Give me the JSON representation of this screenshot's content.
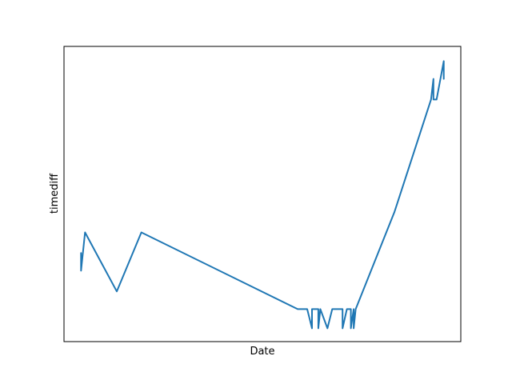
{
  "chart_data": {
    "type": "line",
    "title": "",
    "xlabel": "Date",
    "ylabel": "timediff",
    "x_ticks_visible": false,
    "y_ticks_visible": false,
    "grid": false,
    "xlim": [
      0,
      100
    ],
    "ylim": [
      0,
      100
    ],
    "series": [
      {
        "name": "timediff",
        "color": "#1f77b4",
        "x": [
          4.3,
          4.3,
          4.3,
          5.3,
          13.3,
          19.5,
          58.9,
          61.3,
          62.5,
          62.5,
          64.1,
          64.1,
          64.6,
          66.4,
          67.6,
          67.6,
          70.2,
          70.2,
          71.3,
          71.3,
          72.3,
          72.3,
          73.0,
          73.0,
          73.5,
          73.5,
          83.3,
          92.5,
          93.1,
          93.1,
          93.9,
          95.7,
          95.7
        ],
        "y": [
          24,
          30,
          24,
          37,
          17,
          37,
          11,
          11,
          4.5,
          11,
          11,
          4.5,
          11,
          4.5,
          11,
          11,
          11,
          4.5,
          11,
          11,
          11,
          4.5,
          11,
          4.5,
          11,
          11,
          44,
          82,
          89,
          82,
          82,
          95,
          89
        ]
      }
    ]
  }
}
